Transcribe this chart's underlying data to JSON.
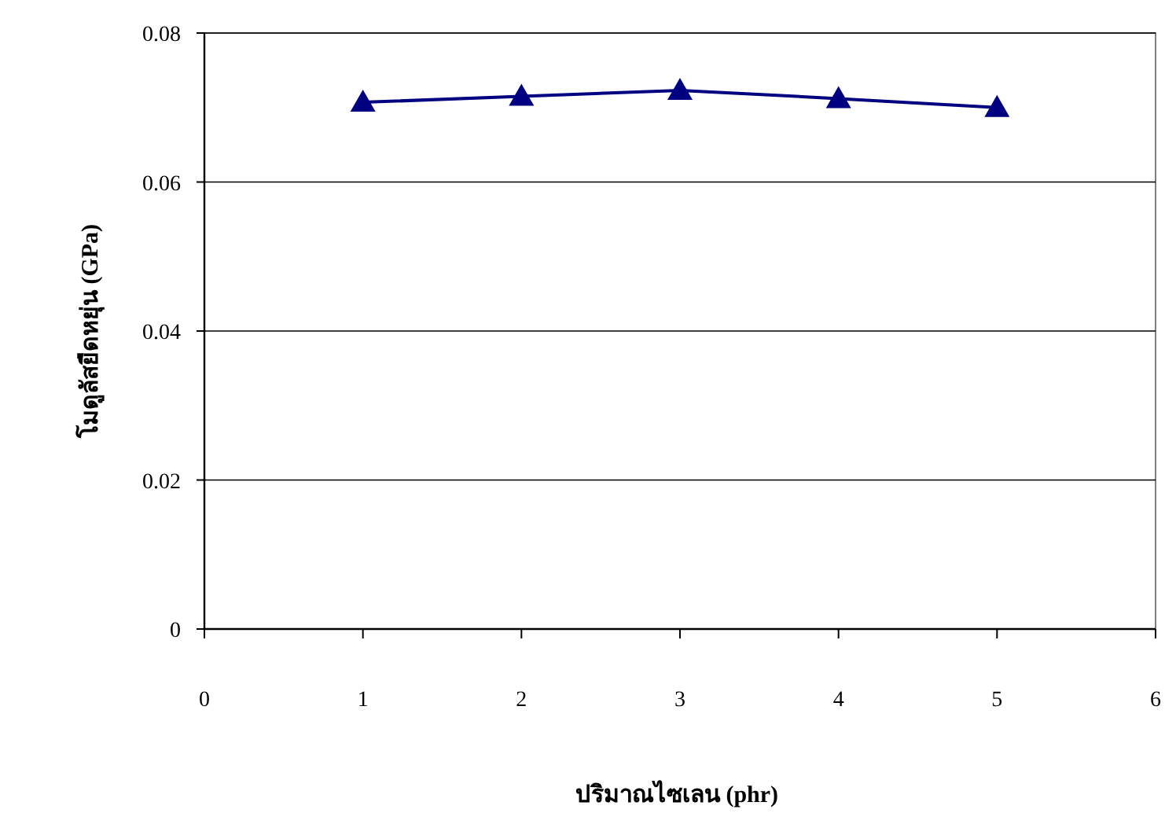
{
  "chart_data": {
    "type": "line",
    "xlabel": "ปริมาณไซเลน (phr)",
    "ylabel": "โมดูลัสยืดหยุ่น (GPa)",
    "x": [
      1,
      2,
      3,
      4,
      5
    ],
    "series": [
      {
        "color": "#000080",
        "values": [
          0.0707,
          0.0715,
          0.0723,
          0.0712,
          0.07
        ]
      }
    ],
    "xlim": [
      0,
      6
    ],
    "xticks": [
      0,
      1,
      2,
      3,
      4,
      5,
      6
    ],
    "ylim": [
      0,
      0.08
    ],
    "yticks": [
      0,
      0.02,
      0.04,
      0.06,
      0.08
    ],
    "grid": "y",
    "marker": "triangle",
    "line_style": "solid"
  }
}
